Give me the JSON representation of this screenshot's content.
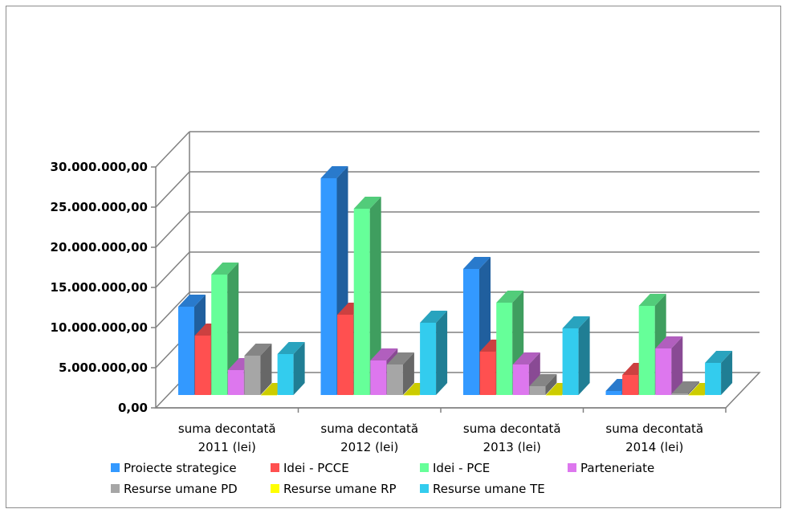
{
  "chart_data": {
    "type": "bar",
    "three_d": true,
    "title": "",
    "xlabel": "",
    "ylabel": "",
    "categories": [
      [
        "suma decontată",
        "2011 (lei)"
      ],
      [
        "suma decontată",
        "2012 (lei)"
      ],
      [
        "suma decontată",
        "2013 (lei)"
      ],
      [
        "suma decontată",
        "2014 (lei)"
      ]
    ],
    "ylim": [
      0,
      30000000
    ],
    "yticks": [
      "0,00",
      "5.000.000,00",
      "10.000.000,00",
      "15.000.000,00",
      "20.000.000,00",
      "25.000.000,00",
      "30.000.000,00"
    ],
    "grid": true,
    "legend_position": "bottom",
    "series": [
      {
        "name": "Proiecte strategice",
        "color": "#3399ff",
        "values": [
          11000000,
          27000000,
          15700000,
          500000
        ]
      },
      {
        "name": "Idei - PCCE",
        "color": "#ff5050",
        "values": [
          7400000,
          10000000,
          5400000,
          2500000
        ]
      },
      {
        "name": "Idei - PCE",
        "color": "#66ff99",
        "values": [
          15000000,
          23200000,
          11500000,
          11100000
        ]
      },
      {
        "name": "Parteneriate",
        "color": "#dd77ee",
        "values": [
          3100000,
          4300000,
          3800000,
          5800000
        ]
      },
      {
        "name": "Resurse umane PD",
        "color": "#a6a6a6",
        "values": [
          4900000,
          3800000,
          1100000,
          200000
        ]
      },
      {
        "name": "Resurse umane RP",
        "color": "#ffff00",
        "values": [
          0,
          0,
          0,
          0
        ]
      },
      {
        "name": "Resurse umane TE",
        "color": "#33ccee",
        "values": [
          5100000,
          9000000,
          8300000,
          4000000
        ]
      }
    ]
  }
}
